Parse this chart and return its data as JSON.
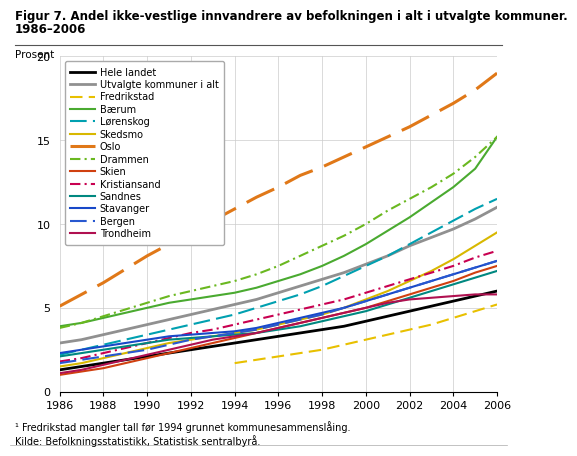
{
  "title_line1": "Figur 7. Andel ikke-vestlige innvandrere av befolkningen i alt i utvalgte kommuner.",
  "title_line2": "1986–2006",
  "ylabel": "Prosent",
  "footnote1": "¹ Fredrikstad mangler tall før 1994 grunnet kommunesammenslåing.",
  "footnote2": "Kilde: Befolkningsstatistikk, Statistisk sentralbyrå.",
  "years": [
    1986,
    1987,
    1988,
    1989,
    1990,
    1991,
    1992,
    1993,
    1994,
    1995,
    1996,
    1997,
    1998,
    1999,
    2000,
    2001,
    2002,
    2003,
    2004,
    2005,
    2006
  ],
  "series": [
    {
      "name": "Hele landet",
      "color": "#000000",
      "linestyle": "solid",
      "linewidth": 2.0,
      "data": [
        1.3,
        1.5,
        1.7,
        1.9,
        2.1,
        2.3,
        2.5,
        2.7,
        2.9,
        3.1,
        3.3,
        3.5,
        3.7,
        3.9,
        4.2,
        4.5,
        4.8,
        5.1,
        5.4,
        5.7,
        6.0
      ]
    },
    {
      "name": "Utvalgte kommuner i alt",
      "color": "#909090",
      "linestyle": "solid",
      "linewidth": 2.0,
      "data": [
        2.9,
        3.1,
        3.4,
        3.7,
        4.0,
        4.3,
        4.6,
        4.9,
        5.2,
        5.5,
        5.9,
        6.3,
        6.7,
        7.1,
        7.6,
        8.1,
        8.7,
        9.2,
        9.7,
        10.3,
        11.0
      ]
    },
    {
      "name": "Fredrikstad",
      "color": "#e8c000",
      "linestyle": "dashed",
      "linewidth": 1.5,
      "dashes": [
        6,
        3
      ],
      "data": [
        null,
        null,
        null,
        null,
        null,
        null,
        null,
        null,
        1.7,
        1.9,
        2.1,
        2.3,
        2.5,
        2.8,
        3.1,
        3.4,
        3.7,
        4.0,
        4.4,
        4.8,
        5.2
      ]
    },
    {
      "name": "Bærum",
      "color": "#4aaa30",
      "linestyle": "solid",
      "linewidth": 1.5,
      "dashes": null,
      "data": [
        3.9,
        4.1,
        4.4,
        4.7,
        5.0,
        5.3,
        5.5,
        5.7,
        5.9,
        6.2,
        6.6,
        7.0,
        7.5,
        8.1,
        8.8,
        9.6,
        10.4,
        11.3,
        12.2,
        13.3,
        15.2
      ]
    },
    {
      "name": "Lørenskog",
      "color": "#00a0b0",
      "linestyle": "dashed",
      "linewidth": 1.5,
      "dashes": [
        8,
        3
      ],
      "data": [
        2.2,
        2.5,
        2.8,
        3.1,
        3.4,
        3.7,
        4.0,
        4.3,
        4.6,
        5.0,
        5.4,
        5.8,
        6.3,
        6.9,
        7.5,
        8.1,
        8.8,
        9.5,
        10.2,
        10.9,
        11.5
      ]
    },
    {
      "name": "Skedsmo",
      "color": "#d8b800",
      "linestyle": "solid",
      "linewidth": 1.5,
      "dashes": null,
      "data": [
        1.5,
        1.7,
        2.0,
        2.3,
        2.6,
        2.9,
        3.1,
        3.3,
        3.5,
        3.7,
        4.0,
        4.3,
        4.6,
        5.0,
        5.5,
        6.0,
        6.6,
        7.2,
        7.9,
        8.7,
        9.5
      ]
    },
    {
      "name": "Oslo",
      "color": "#e07818",
      "linestyle": "dashed",
      "linewidth": 2.2,
      "dashes": [
        10,
        4
      ],
      "data": [
        5.1,
        5.8,
        6.5,
        7.3,
        8.1,
        8.8,
        9.5,
        10.2,
        10.9,
        11.6,
        12.2,
        12.9,
        13.4,
        14.0,
        14.6,
        15.2,
        15.8,
        16.5,
        17.2,
        18.0,
        19.0
      ]
    },
    {
      "name": "Drammen",
      "color": "#6ab820",
      "linestyle": "dashed",
      "linewidth": 1.5,
      "dashes": [
        5,
        2,
        1,
        2
      ],
      "data": [
        3.8,
        4.1,
        4.5,
        4.9,
        5.3,
        5.7,
        6.0,
        6.3,
        6.6,
        7.0,
        7.5,
        8.1,
        8.7,
        9.3,
        10.0,
        10.8,
        11.5,
        12.2,
        13.0,
        14.0,
        15.2
      ]
    },
    {
      "name": "Skien",
      "color": "#d04010",
      "linestyle": "solid",
      "linewidth": 1.5,
      "dashes": null,
      "data": [
        1.0,
        1.2,
        1.4,
        1.7,
        2.0,
        2.3,
        2.6,
        2.9,
        3.2,
        3.5,
        3.8,
        4.1,
        4.4,
        4.7,
        5.0,
        5.4,
        5.8,
        6.2,
        6.6,
        7.1,
        7.5
      ]
    },
    {
      "name": "Kristiansand",
      "color": "#c80050",
      "linestyle": "dashed",
      "linewidth": 1.5,
      "dashes": [
        5,
        2,
        1,
        2
      ],
      "data": [
        1.8,
        2.0,
        2.3,
        2.6,
        2.9,
        3.2,
        3.5,
        3.7,
        4.0,
        4.3,
        4.6,
        4.9,
        5.2,
        5.5,
        5.9,
        6.3,
        6.7,
        7.1,
        7.5,
        8.0,
        8.4
      ]
    },
    {
      "name": "Sandnes",
      "color": "#008880",
      "linestyle": "solid",
      "linewidth": 1.5,
      "dashes": null,
      "data": [
        2.1,
        2.3,
        2.5,
        2.7,
        2.9,
        3.1,
        3.2,
        3.3,
        3.4,
        3.5,
        3.7,
        3.9,
        4.2,
        4.5,
        4.8,
        5.2,
        5.6,
        6.0,
        6.4,
        6.8,
        7.2
      ]
    },
    {
      "name": "Stavanger",
      "color": "#1848c8",
      "linestyle": "solid",
      "linewidth": 1.5,
      "dashes": null,
      "data": [
        2.3,
        2.5,
        2.7,
        2.9,
        3.1,
        3.3,
        3.4,
        3.5,
        3.6,
        3.8,
        4.1,
        4.4,
        4.7,
        5.0,
        5.4,
        5.8,
        6.2,
        6.6,
        7.0,
        7.4,
        7.8
      ]
    },
    {
      "name": "Bergen",
      "color": "#2858d0",
      "linestyle": "dashed",
      "linewidth": 1.5,
      "dashes": [
        8,
        3
      ],
      "data": [
        1.7,
        1.9,
        2.1,
        2.3,
        2.5,
        2.8,
        3.1,
        3.3,
        3.5,
        3.7,
        4.0,
        4.3,
        4.6,
        5.0,
        5.4,
        5.8,
        6.2,
        6.6,
        7.0,
        7.4,
        7.8
      ]
    },
    {
      "name": "Trondheim",
      "color": "#b01050",
      "linestyle": "solid",
      "linewidth": 1.5,
      "dashes": null,
      "data": [
        1.1,
        1.3,
        1.6,
        1.9,
        2.2,
        2.5,
        2.8,
        3.1,
        3.3,
        3.5,
        3.8,
        4.1,
        4.4,
        4.7,
        5.0,
        5.3,
        5.5,
        5.6,
        5.7,
        5.8,
        5.8
      ]
    }
  ],
  "ylim": [
    0,
    20
  ],
  "yticks": [
    0,
    5,
    10,
    15,
    20
  ],
  "xticks": [
    1986,
    1988,
    1990,
    1992,
    1994,
    1996,
    1998,
    2000,
    2002,
    2004,
    2006
  ],
  "bg_color": "#ffffff",
  "grid_color": "#cccccc",
  "title_fontsize": 8.5,
  "tick_fontsize": 8.0,
  "legend_fontsize": 7.0,
  "ylabel_fontsize": 7.5,
  "footnote_fontsize": 7.0
}
